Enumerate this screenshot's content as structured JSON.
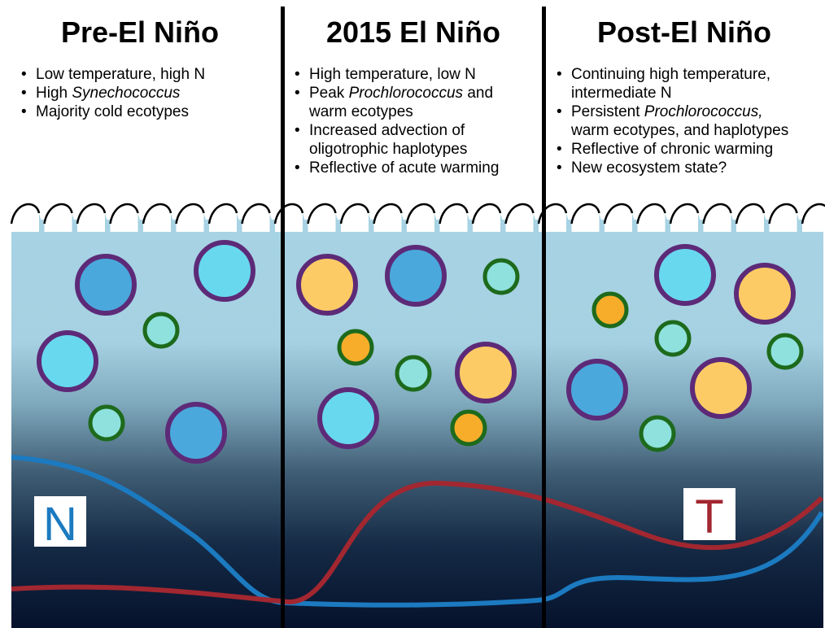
{
  "panels": [
    {
      "title": "Pre-El Niño",
      "bullets": [
        {
          "pre": "Low temperature, high N",
          "ital": "",
          "post": ""
        },
        {
          "pre": "High ",
          "ital": "Synechococcus",
          "post": ""
        },
        {
          "pre": "Majority cold ecotypes",
          "ital": "",
          "post": ""
        }
      ]
    },
    {
      "title": "2015 El Niño",
      "bullets": [
        {
          "pre": "High temperature, low N",
          "ital": "",
          "post": ""
        },
        {
          "pre": "Peak ",
          "ital": "Prochlorococcus",
          "post": " and",
          "cont": "warm ecotypes"
        },
        {
          "pre": "Increased advection of",
          "ital": "",
          "post": "",
          "cont": "oligotrophic haplotypes"
        },
        {
          "pre": "Reflective of acute warming",
          "ital": "",
          "post": ""
        }
      ]
    },
    {
      "title": "Post-El Niño",
      "bullets": [
        {
          "pre": "Continuing high temperature,",
          "ital": "",
          "post": "",
          "cont": "intermediate N"
        },
        {
          "pre": "Persistent ",
          "ital": "Prochlorococcus,",
          "post": "",
          "cont": "warm ecotypes, and haplotypes"
        },
        {
          "pre": "Reflective of chronic warming",
          "ital": "",
          "post": ""
        },
        {
          "pre": "New ecosystem state?",
          "ital": "",
          "post": ""
        }
      ]
    }
  ],
  "labels": {
    "nutrient": "N",
    "temperature": "T"
  },
  "colors": {
    "water_top": "#a7d3e4",
    "water_bottom": "#06122c",
    "divider": "#000000",
    "nutrient_line": "#1c7ac0",
    "temperature_line": "#a22730",
    "large_cell_outline": "#5d2a78",
    "small_cell_outline": "#1d6a1c",
    "cell_light_blue": "#68d8ef",
    "cell_mid_blue": "#4aa8dc",
    "cell_orange": "#fdcb66",
    "cell_small_orange": "#f7ad2a",
    "cell_mint": "#8ee1dc"
  },
  "cells": [
    {
      "kind": "large",
      "fill": "cell_mid_blue"
    },
    {
      "kind": "large",
      "fill": "cell_light_blue"
    },
    {
      "kind": "small",
      "fill": "cell_mint"
    },
    {
      "kind": "large",
      "fill": "cell_light_blue"
    },
    {
      "kind": "small",
      "fill": "cell_mint"
    },
    {
      "kind": "large",
      "fill": "cell_mid_blue"
    },
    {
      "kind": "large",
      "fill": "cell_orange"
    },
    {
      "kind": "large",
      "fill": "cell_mid_blue"
    },
    {
      "kind": "small",
      "fill": "cell_mint"
    },
    {
      "kind": "small",
      "fill": "cell_small_orange"
    },
    {
      "kind": "small",
      "fill": "cell_mint"
    },
    {
      "kind": "large",
      "fill": "cell_orange"
    },
    {
      "kind": "large",
      "fill": "cell_light_blue"
    },
    {
      "kind": "small",
      "fill": "cell_small_orange"
    },
    {
      "kind": "large",
      "fill": "cell_light_blue"
    },
    {
      "kind": "large",
      "fill": "cell_orange"
    },
    {
      "kind": "small",
      "fill": "cell_small_orange"
    },
    {
      "kind": "small",
      "fill": "cell_mint"
    },
    {
      "kind": "small",
      "fill": "cell_mint"
    },
    {
      "kind": "large",
      "fill": "cell_mid_blue"
    },
    {
      "kind": "large",
      "fill": "cell_orange"
    },
    {
      "kind": "small",
      "fill": "cell_mint"
    }
  ]
}
